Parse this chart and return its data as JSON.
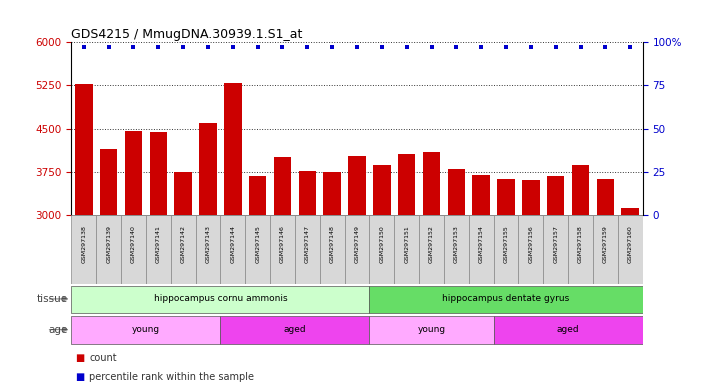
{
  "title": "GDS4215 / MmugDNA.30939.1.S1_at",
  "samples": [
    "GSM297138",
    "GSM297139",
    "GSM297140",
    "GSM297141",
    "GSM297142",
    "GSM297143",
    "GSM297144",
    "GSM297145",
    "GSM297146",
    "GSM297147",
    "GSM297148",
    "GSM297149",
    "GSM297150",
    "GSM297151",
    "GSM297152",
    "GSM297153",
    "GSM297154",
    "GSM297155",
    "GSM297156",
    "GSM297157",
    "GSM297158",
    "GSM297159",
    "GSM297160"
  ],
  "counts": [
    5280,
    4150,
    4460,
    4450,
    3740,
    4590,
    5290,
    3680,
    4000,
    3760,
    3750,
    4020,
    3870,
    4060,
    4100,
    3800,
    3700,
    3620,
    3600,
    3680,
    3870,
    3630,
    3130
  ],
  "percentiles": [
    97,
    97,
    97,
    97,
    97,
    97,
    97,
    97,
    97,
    97,
    97,
    97,
    97,
    97,
    97,
    97,
    97,
    97,
    97,
    97,
    97,
    97,
    97
  ],
  "ylim_left": [
    3000,
    6000
  ],
  "ylim_right": [
    0,
    100
  ],
  "yticks_left": [
    3000,
    3750,
    4500,
    5250,
    6000
  ],
  "yticks_right": [
    0,
    25,
    50,
    75,
    100
  ],
  "bar_color": "#cc0000",
  "dot_color": "#0000cc",
  "background_color": "#ffffff",
  "tissue_groups": [
    {
      "label": "hippocampus cornu ammonis",
      "start": 0,
      "end": 12,
      "color": "#ccffcc"
    },
    {
      "label": "hippocampus dentate gyrus",
      "start": 12,
      "end": 23,
      "color": "#66dd66"
    }
  ],
  "age_groups": [
    {
      "label": "young",
      "start": 0,
      "end": 6,
      "color": "#ffaaff"
    },
    {
      "label": "aged",
      "start": 6,
      "end": 12,
      "color": "#ee44ee"
    },
    {
      "label": "young",
      "start": 12,
      "end": 17,
      "color": "#ffaaff"
    },
    {
      "label": "aged",
      "start": 17,
      "end": 23,
      "color": "#ee44ee"
    }
  ],
  "legend_count_color": "#cc0000",
  "legend_dot_color": "#0000cc",
  "dotted_line_color": "#333333",
  "right_axis_color": "#0000cc",
  "left_axis_color": "#cc0000",
  "grid_color": "#000000"
}
